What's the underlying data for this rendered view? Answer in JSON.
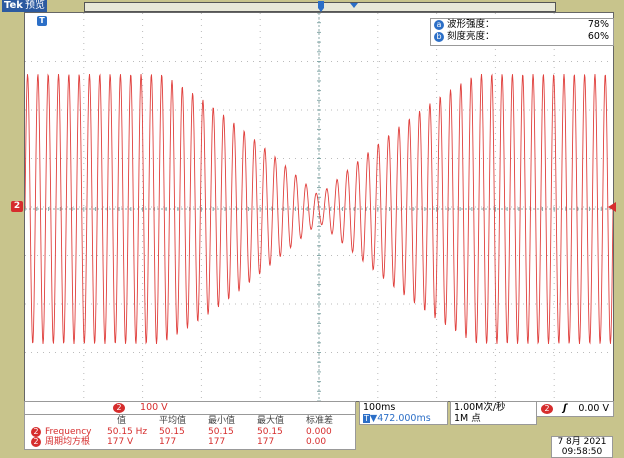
{
  "header": {
    "brand": "Tek",
    "mode": "预览"
  },
  "channel": {
    "number": "2",
    "color": "#d62d2d"
  },
  "trigger_marker": "T",
  "cursor_readout": [
    {
      "badge": "a",
      "label": "波形强度：",
      "value": "78%"
    },
    {
      "badge": "b",
      "label": "刻度亮度：",
      "value": "60%"
    }
  ],
  "vertical": {
    "channel": "2",
    "scale": "100 V"
  },
  "measurements": {
    "headers": [
      "值",
      "平均值",
      "最小值",
      "最大值",
      "标准差"
    ],
    "rows": [
      {
        "channel": "2",
        "name": "Frequency",
        "value": "50.15 Hz",
        "mean": "50.15",
        "min": "50.15",
        "max": "50.15",
        "std": "0.000"
      },
      {
        "channel": "2",
        "name": "周期均方根",
        "value": "177 V",
        "mean": "177",
        "min": "177",
        "max": "177",
        "std": "0.00"
      }
    ]
  },
  "timebase": {
    "scale": "100ms",
    "position": "▼472.000ms",
    "position_badge": "T"
  },
  "acquisition": {
    "rate": "1.00M次/秒",
    "points": "1M 点"
  },
  "trigger": {
    "channel": "2",
    "slope": "ʃ",
    "level": "0.00 V"
  },
  "datetime": {
    "date": "7 8月  2021",
    "time": "09:58:50"
  }
}
